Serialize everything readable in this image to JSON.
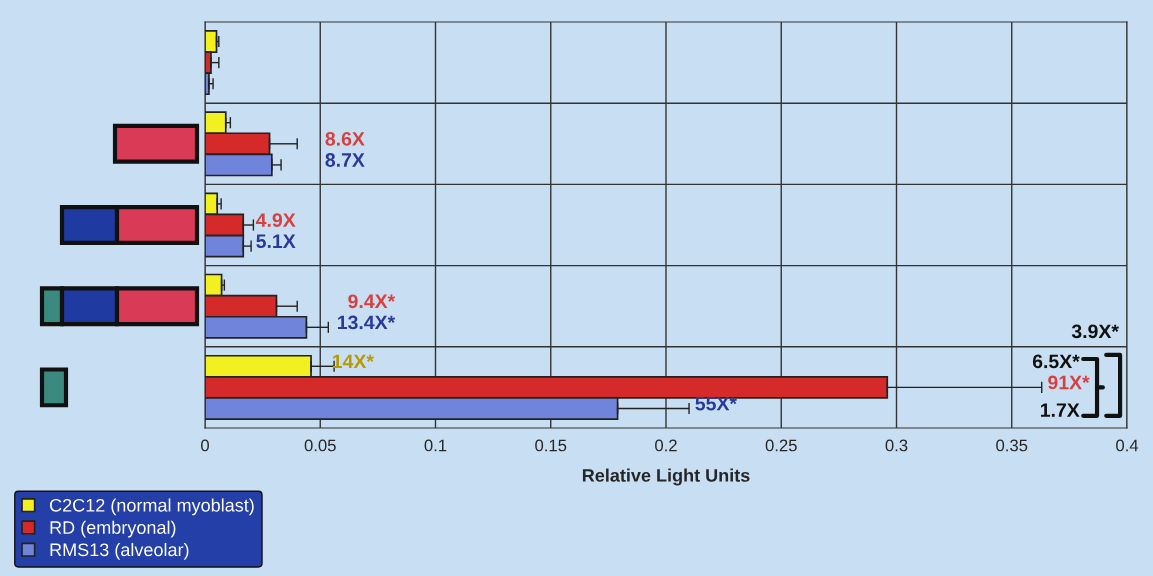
{
  "chart_data": {
    "type": "bar",
    "orientation": "horizontal",
    "xlabel": "Relative Light Units",
    "categories": [
      null,
      null,
      null,
      null,
      null
    ],
    "series": [
      {
        "name": "C2C12 (normal myoblast)",
        "color": "#f2f020",
        "values": [
          0.005,
          0.009,
          0.0053,
          0.0072,
          0.046
        ],
        "errors": [
          [
            0.005,
            0.006
          ],
          [
            0.009,
            0.011
          ],
          [
            0.0053,
            0.007
          ],
          [
            0.0072,
            0.0084
          ],
          [
            0.046,
            0.056
          ]
        ]
      },
      {
        "name": "RD (embryonal)",
        "color": "#d42a2a",
        "values": [
          0.0026,
          0.028,
          0.0166,
          0.031,
          0.296
        ],
        "errors": [
          [
            0.0026,
            0.006
          ],
          [
            0.028,
            0.04
          ],
          [
            0.0166,
            0.021
          ],
          [
            0.031,
            0.04
          ],
          [
            0.296,
            0.363
          ]
        ]
      },
      {
        "name": "RMS13 (alveolar)",
        "color": "#6f84da",
        "values": [
          0.0017,
          0.029,
          0.0166,
          0.044,
          0.179
        ],
        "errors": [
          [
            0.0017,
            0.0035
          ],
          [
            0.029,
            0.033
          ],
          [
            0.0166,
            0.02
          ],
          [
            0.044,
            0.0535
          ],
          [
            0.179,
            0.21
          ]
        ]
      }
    ],
    "xlim": [
      0,
      0.4
    ],
    "xticks": [
      0,
      0.05,
      0.1,
      0.15,
      0.2,
      0.25,
      0.3,
      0.35,
      0.4
    ],
    "tick_labels": "x",
    "grid": true,
    "legend": "bottom left",
    "annotations": [
      "8.6X",
      "8.7X",
      "4.9X",
      "5.1X",
      "9.4X*",
      "13.4X*",
      "14X*",
      "55X*",
      "91X*",
      "6.5X*",
      "1.7X",
      "3.9X*"
    ]
  }
}
